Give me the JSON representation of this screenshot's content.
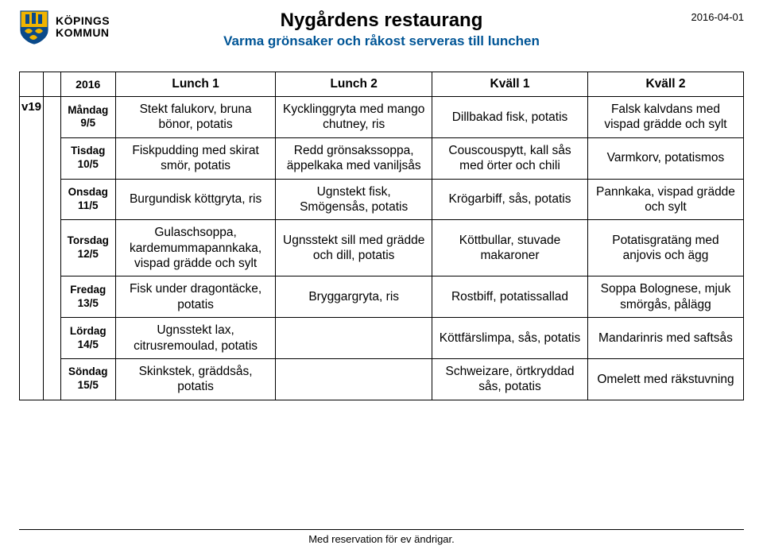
{
  "header": {
    "logo_line1": "KÖPINGS",
    "logo_line2": "KOMMUN",
    "title": "Nygårdens restaurang",
    "subtitle": "Varma grönsaker och råkost serveras till lunchen",
    "date": "2016-04-01"
  },
  "colors": {
    "subtitle": "#005596",
    "border": "#000000",
    "text": "#000000",
    "shield_yellow": "#f0b400",
    "shield_blue": "#0a4a8a"
  },
  "table": {
    "week_label": "v19",
    "year": "2016",
    "headers": [
      "Lunch 1",
      "Lunch 2",
      "Kväll 1",
      "Kväll 2"
    ],
    "rows": [
      {
        "day": "Måndag",
        "date": "9/5",
        "cells": [
          "Stekt falukorv, bruna bönor, potatis",
          "Kycklinggryta med mango chutney, ris",
          "Dillbakad fisk, potatis",
          "Falsk kalvdans med vispad grädde och sylt"
        ]
      },
      {
        "day": "Tisdag",
        "date": "10/5",
        "cells": [
          "Fiskpudding med skirat smör, potatis",
          "Redd grönsakssoppa, äppelkaka med vaniljsås",
          "Couscouspytt, kall sås med örter och chili",
          "Varmkorv, potatismos"
        ]
      },
      {
        "day": "Onsdag",
        "date": "11/5",
        "cells": [
          "Burgundisk köttgryta, ris",
          "Ugnstekt fisk, Smögensås, potatis",
          "Krögarbiff, sås, potatis",
          "Pannkaka, vispad grädde och sylt"
        ]
      },
      {
        "day": "Torsdag",
        "date": "12/5",
        "cells": [
          "Gulaschsoppa, kardemummapannkaka, vispad grädde och sylt",
          "Ugnsstekt sill med grädde och dill, potatis",
          "Köttbullar, stuvade makaroner",
          "Potatisgratäng med anjovis och ägg"
        ]
      },
      {
        "day": "Fredag",
        "date": "13/5",
        "cells": [
          "Fisk under dragontäcke, potatis",
          "Bryggargryta, ris",
          "Rostbiff, potatissallad",
          "Soppa Bolognese, mjuk smörgås, pålägg"
        ]
      },
      {
        "day": "Lördag",
        "date": "14/5",
        "cells": [
          "Ugnsstekt lax, citrusremoulad, potatis",
          "",
          "Köttfärslimpa, sås, potatis",
          "Mandarinris med saftsås"
        ]
      },
      {
        "day": "Söndag",
        "date": "15/5",
        "cells": [
          "Skinkstek, gräddsås, potatis",
          "",
          "Schweizare, örtkryddad sås, potatis",
          "Omelett med räkstuvning"
        ]
      }
    ]
  },
  "footer": "Med reservation för ev ändrigar."
}
